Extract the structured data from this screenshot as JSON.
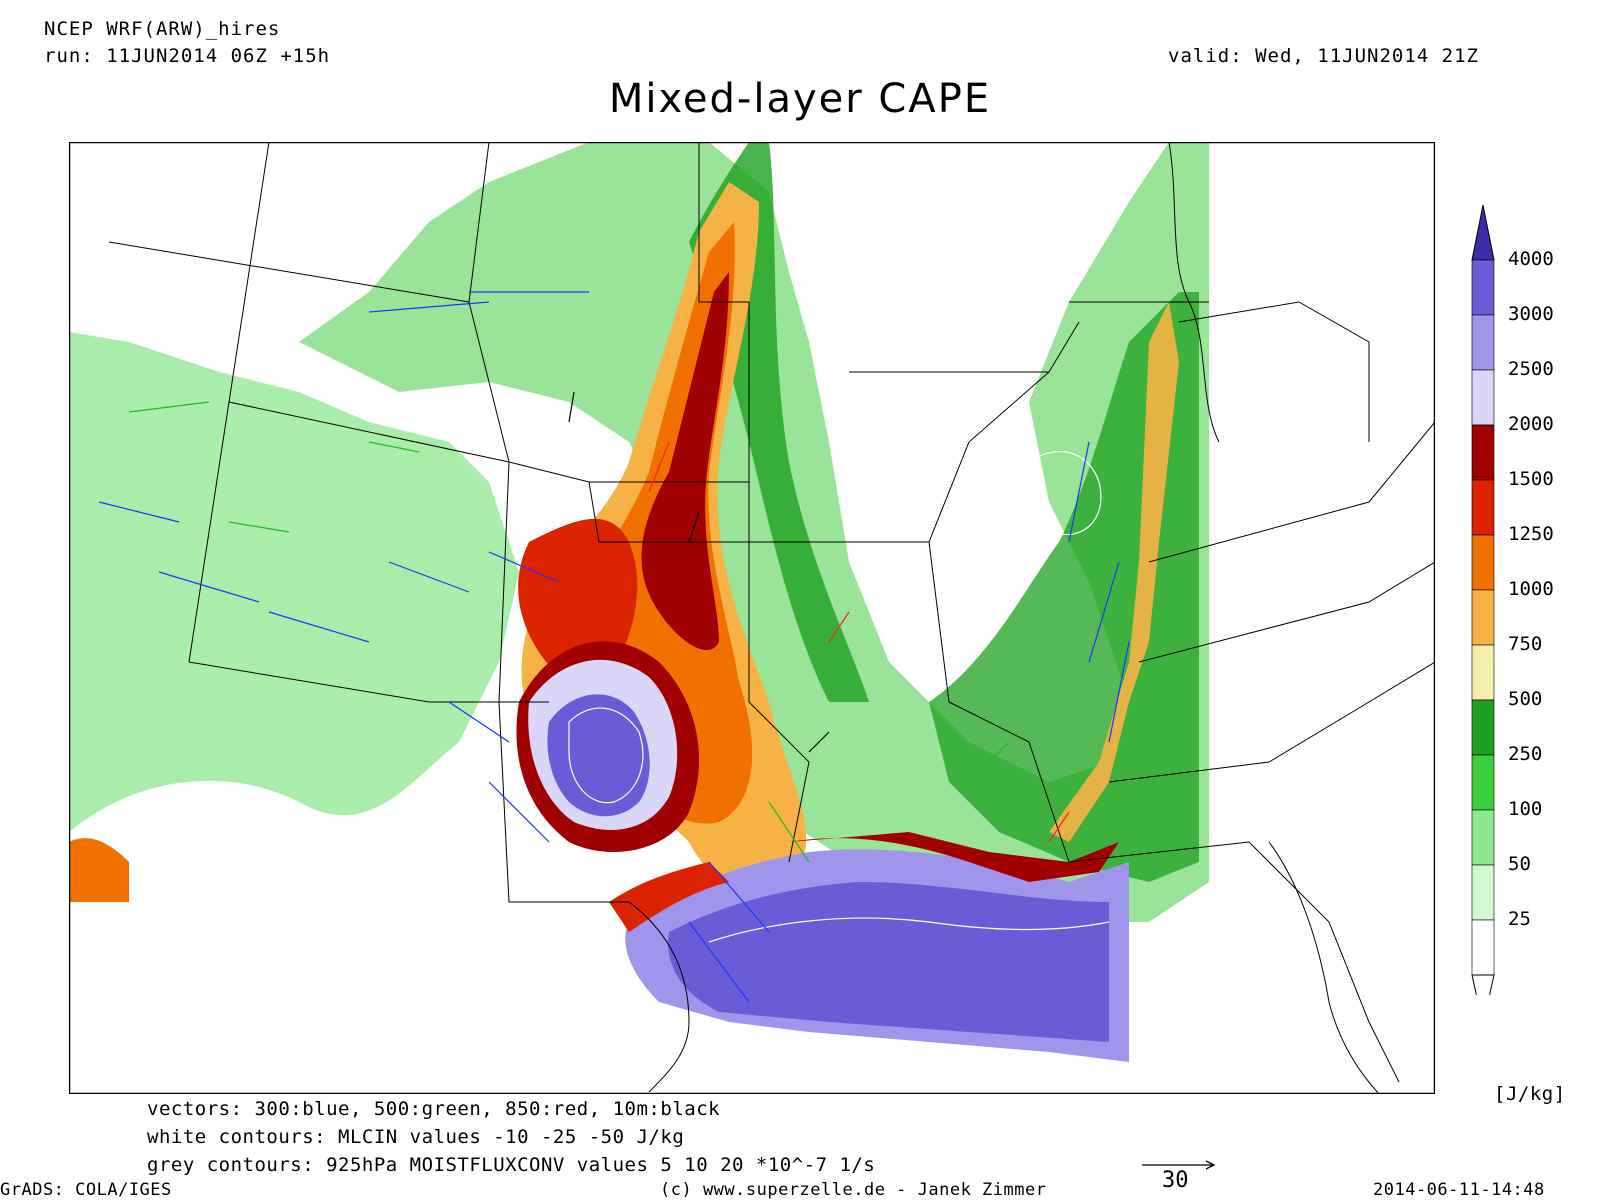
{
  "header": {
    "model": "NCEP WRF(ARW)_hires",
    "run": "run: 11JUN2014 06Z +15h",
    "valid": "valid: Wed, 11JUN2014 21Z",
    "title": "Mixed-layer CAPE"
  },
  "colorbar": {
    "unit": "[J/kg]",
    "levels": [
      {
        "label": "4000",
        "color": "#3c2ca8"
      },
      {
        "label": "3000",
        "color": "#6a5bd6"
      },
      {
        "label": "2500",
        "color": "#9f95ea"
      },
      {
        "label": "2000",
        "color": "#d9d6f7"
      },
      {
        "label": "1500",
        "color": "#a00000"
      },
      {
        "label": "1250",
        "color": "#dc2300"
      },
      {
        "label": "1000",
        "color": "#f07000"
      },
      {
        "label": "750",
        "color": "#f7b245"
      },
      {
        "label": "500",
        "color": "#f4eeab"
      },
      {
        "label": "250",
        "color": "#1ea01e"
      },
      {
        "label": "100",
        "color": "#3ccd3c"
      },
      {
        "label": "50",
        "color": "#8ee68e"
      },
      {
        "label": "25",
        "color": "#d2f7d2"
      }
    ]
  },
  "legend": {
    "vectors": "vectors: 300:blue, 500:green, 850:red, 10m:black",
    "white_contours": "white contours: MLCIN values -10 -25 -50 J/kg",
    "grey_contours": "grey contours: 925hPa MOISTFLUXCONV values 5 10 20 *10^-7 1/s"
  },
  "footer": {
    "software": "GrADS: COLA/IGES",
    "credit": "(c) www.superzelle.de - Janek Zimmer",
    "date": "2014-06-11-14:48",
    "ref_vector": "30"
  }
}
